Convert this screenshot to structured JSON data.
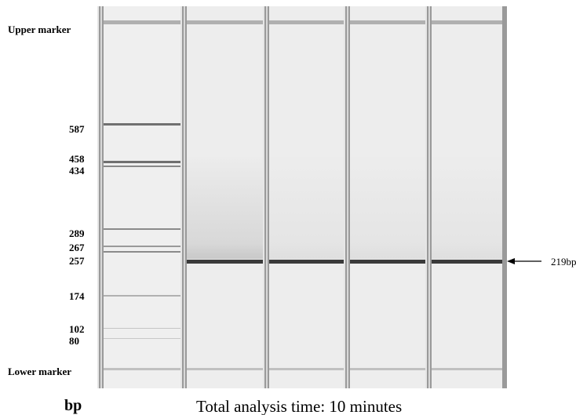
{
  "markers": [
    "Upper marker",
    "587",
    "458",
    "434",
    "289",
    "267",
    "257",
    "174",
    "102",
    "80",
    "Lower marker"
  ],
  "annotation": "219bp",
  "axis_label": "bp",
  "caption": "Total analysis time: 10 minutes"
}
